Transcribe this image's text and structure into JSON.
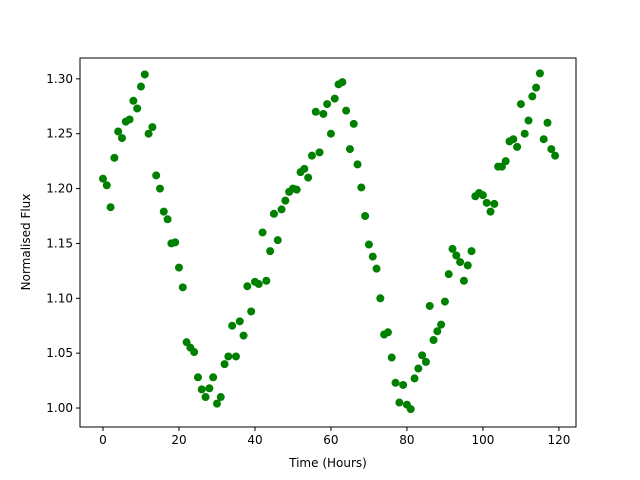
{
  "chart_data": {
    "type": "scatter",
    "xlabel": "Time (Hours)",
    "ylabel": "Normalised Flux",
    "color": "#008000",
    "x": [
      0,
      1,
      2,
      3,
      4,
      5,
      6,
      7,
      8,
      9,
      10,
      11,
      12,
      13,
      14,
      15,
      16,
      17,
      18,
      19,
      20,
      21,
      22,
      23,
      24,
      25,
      26,
      27,
      28,
      29,
      30,
      31,
      32,
      33,
      34,
      35,
      36,
      37,
      38,
      39,
      40,
      41,
      42,
      43,
      44,
      45,
      46,
      47,
      48,
      49,
      50,
      51,
      52,
      53,
      54,
      55,
      56,
      57,
      58,
      59,
      60,
      61,
      62,
      63,
      64,
      65,
      66,
      67,
      68,
      69,
      70,
      71,
      72,
      73,
      74,
      75,
      76,
      77,
      78,
      79,
      80,
      81,
      82,
      83,
      84,
      85,
      86,
      87,
      88,
      89,
      90,
      91,
      92,
      93,
      94,
      95,
      96,
      97,
      98,
      99,
      100,
      101,
      102,
      103,
      104,
      105,
      106,
      107,
      108,
      109,
      110,
      111,
      112,
      113,
      114,
      115,
      116,
      117,
      118,
      119
    ],
    "values": [
      1.209,
      1.203,
      1.183,
      1.228,
      1.252,
      1.246,
      1.261,
      1.263,
      1.28,
      1.273,
      1.293,
      1.304,
      1.25,
      1.256,
      1.212,
      1.2,
      1.179,
      1.172,
      1.15,
      1.151,
      1.128,
      1.11,
      1.06,
      1.055,
      1.051,
      1.028,
      1.017,
      1.01,
      1.018,
      1.028,
      1.004,
      1.01,
      1.04,
      1.047,
      1.075,
      1.047,
      1.079,
      1.066,
      1.111,
      1.088,
      1.115,
      1.113,
      1.16,
      1.116,
      1.143,
      1.177,
      1.153,
      1.181,
      1.189,
      1.197,
      1.2,
      1.199,
      1.215,
      1.218,
      1.21,
      1.23,
      1.27,
      1.233,
      1.268,
      1.277,
      1.25,
      1.282,
      1.295,
      1.297,
      1.271,
      1.236,
      1.259,
      1.222,
      1.201,
      1.175,
      1.149,
      1.138,
      1.127,
      1.1,
      1.067,
      1.069,
      1.046,
      1.023,
      1.005,
      1.021,
      1.003,
      0.999,
      1.027,
      1.036,
      1.048,
      1.042,
      1.093,
      1.062,
      1.07,
      1.076,
      1.097,
      1.122,
      1.145,
      1.139,
      1.133,
      1.116,
      1.13,
      1.143,
      1.193,
      1.196,
      1.194,
      1.187,
      1.179,
      1.186,
      1.22,
      1.22,
      1.225,
      1.243,
      1.245,
      1.238,
      1.277,
      1.25,
      1.262,
      1.284,
      1.292,
      1.305,
      1.245,
      1.26,
      1.236,
      1.23
    ],
    "xlim": [
      -6.05,
      124.5
    ],
    "ylim": [
      0.9827,
      1.319
    ],
    "xticks": [
      0,
      20,
      40,
      60,
      80,
      100,
      120
    ],
    "yticks": [
      {
        "value": 1.0,
        "label": "1.00"
      },
      {
        "value": 1.05,
        "label": "1.05"
      },
      {
        "value": 1.1,
        "label": "1.10"
      },
      {
        "value": 1.15,
        "label": "1.15"
      },
      {
        "value": 1.2,
        "label": "1.20"
      },
      {
        "value": 1.25,
        "label": "1.25"
      },
      {
        "value": 1.3,
        "label": "1.30"
      }
    ],
    "grid": false
  }
}
